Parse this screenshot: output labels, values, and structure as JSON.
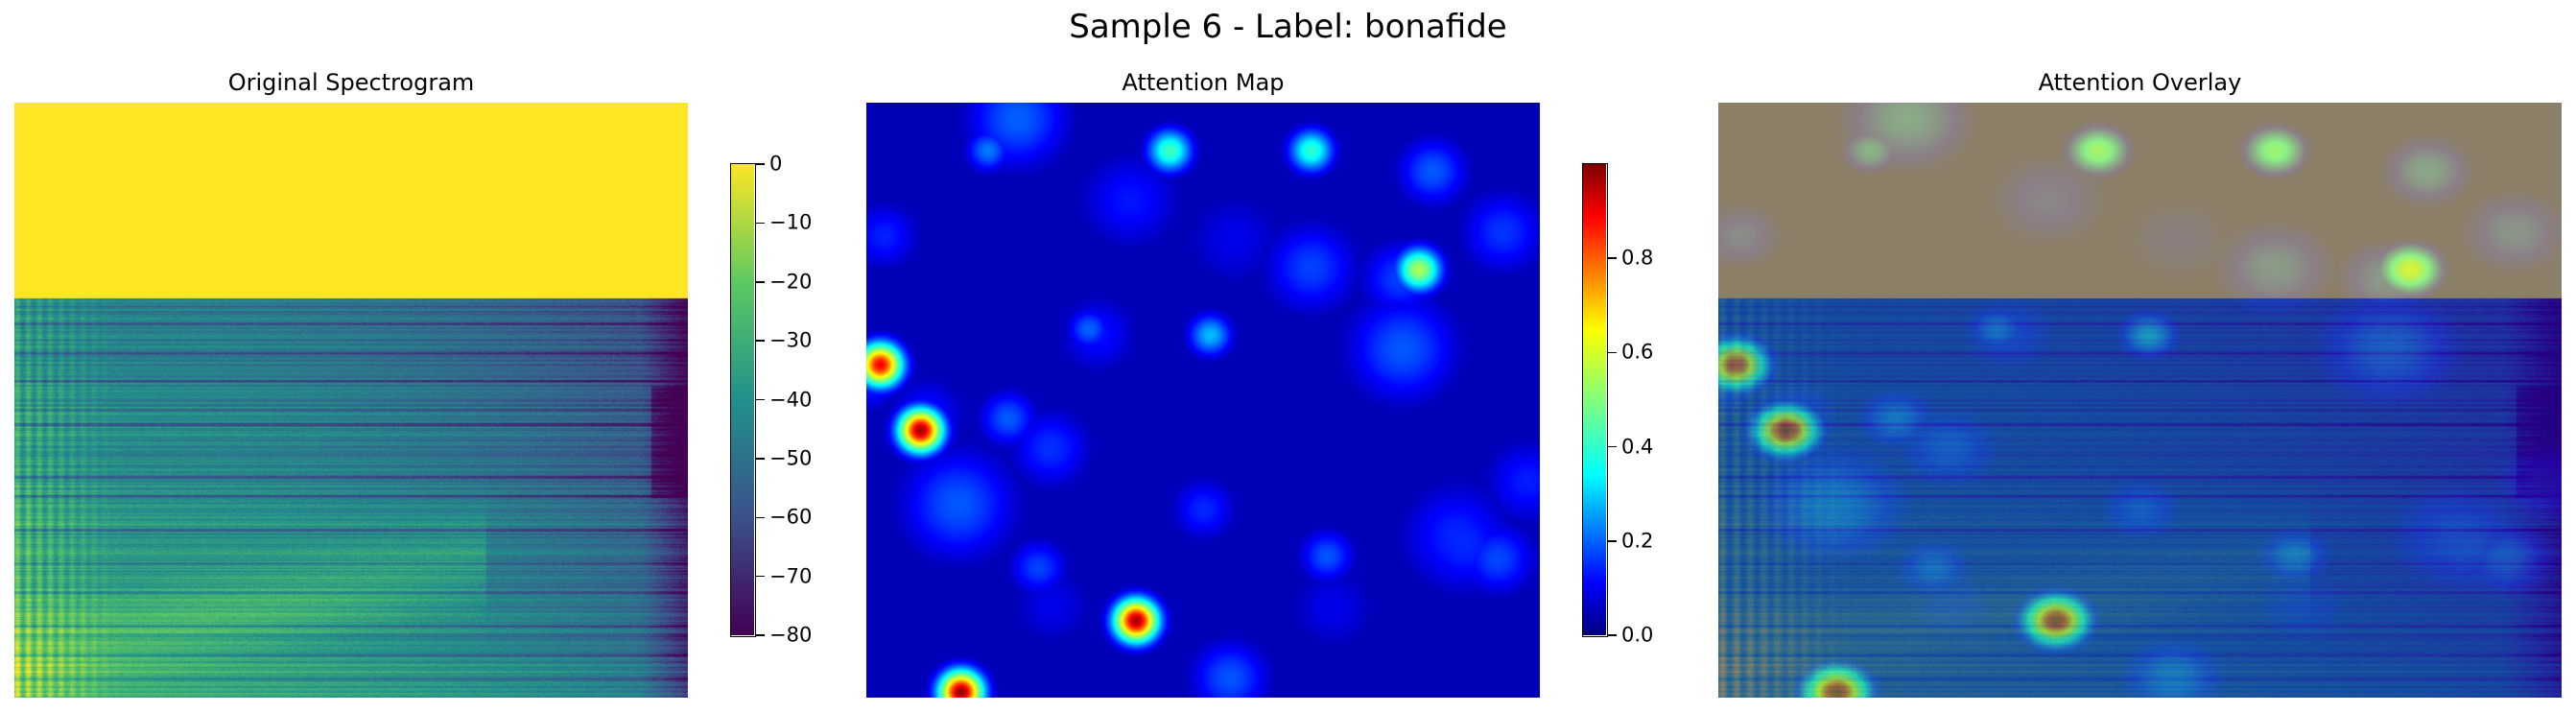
{
  "figure": {
    "suptitle": "Sample 6 - Label: bonafide"
  },
  "colors": {
    "background": "#ffffff",
    "viridis": [
      "#440154",
      "#3b528b",
      "#21918c",
      "#5ec962",
      "#fde725"
    ],
    "jet": [
      "#00007f",
      "#0000ff",
      "#00ffff",
      "#ffff00",
      "#ff0000",
      "#7f0000"
    ]
  },
  "chart_data": [
    {
      "type": "heatmap",
      "title": "Original Spectrogram",
      "colormap": "viridis",
      "axes": "off",
      "colorbar": {
        "range": [
          -80,
          0
        ],
        "ticks": [
          0,
          -10,
          -20,
          -30,
          -40,
          -50,
          -60,
          -70,
          -80
        ]
      }
    },
    {
      "type": "heatmap",
      "title": "Attention Map",
      "colormap": "jet",
      "axes": "off",
      "colorbar": {
        "range": [
          0,
          1.0
        ],
        "ticks": [
          0.0,
          0.2,
          0.4,
          0.6,
          0.8
        ]
      },
      "hotspots": [
        {
          "x": 0.02,
          "y": 0.44,
          "value": 0.9
        },
        {
          "x": 0.08,
          "y": 0.55,
          "value": 0.97
        },
        {
          "x": 0.14,
          "y": 0.99,
          "value": 0.98
        },
        {
          "x": 0.4,
          "y": 0.87,
          "value": 0.97
        },
        {
          "x": 0.82,
          "y": 0.28,
          "value": 0.55
        },
        {
          "x": 0.45,
          "y": 0.08,
          "value": 0.42
        },
        {
          "x": 0.66,
          "y": 0.08,
          "value": 0.4
        },
        {
          "x": 0.51,
          "y": 0.39,
          "value": 0.28
        },
        {
          "x": 0.18,
          "y": 0.08,
          "value": 0.22
        },
        {
          "x": 0.33,
          "y": 0.38,
          "value": 0.2
        }
      ]
    },
    {
      "type": "heatmap",
      "title": "Attention Overlay",
      "colormap": "viridis+jet",
      "axes": "off"
    }
  ]
}
